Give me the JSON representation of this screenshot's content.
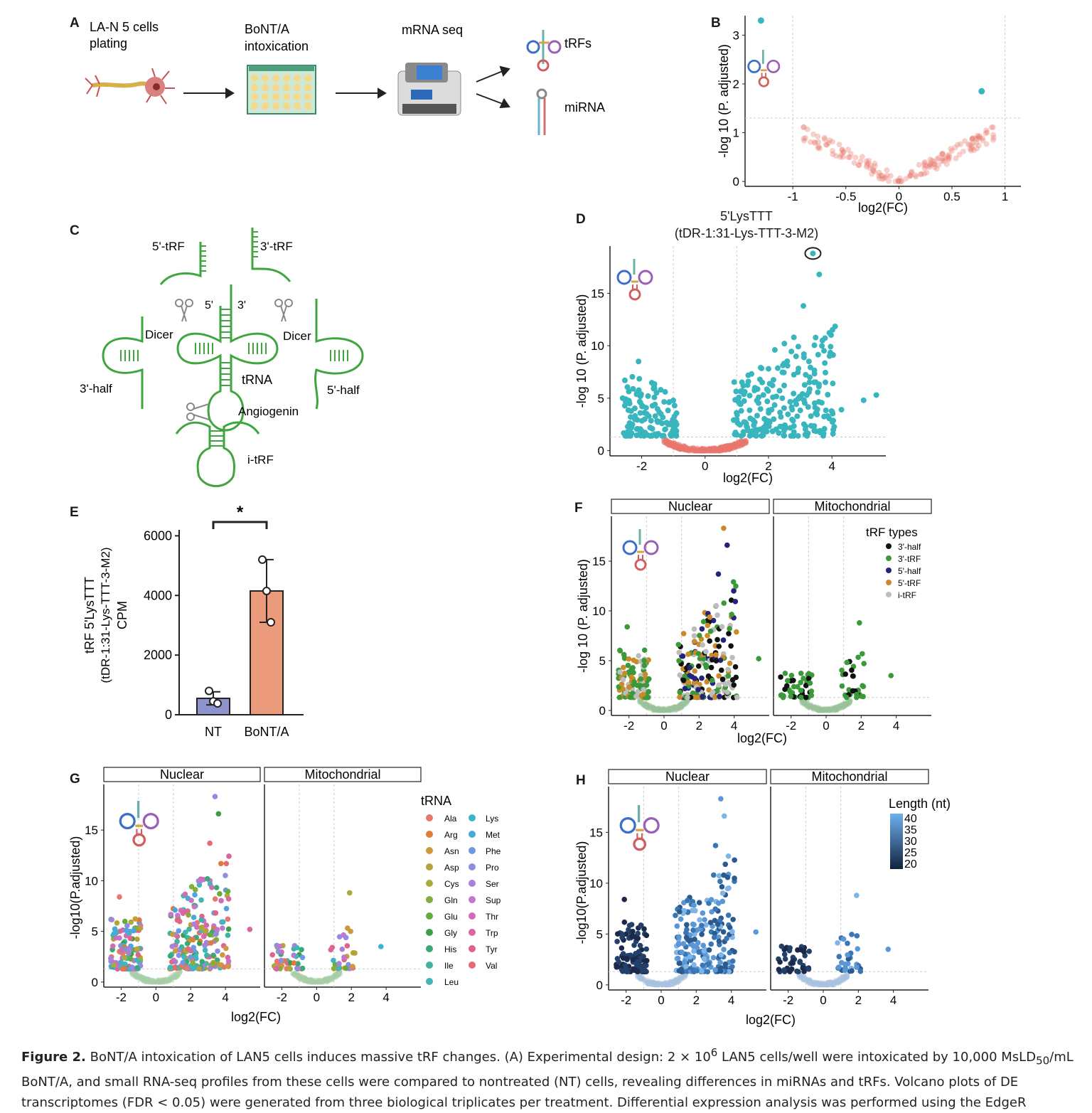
{
  "labels": {
    "A": "A",
    "B": "B",
    "C": "C",
    "D": "D",
    "E": "E",
    "F": "F",
    "G": "G",
    "H": "H"
  },
  "panelA": {
    "step1": [
      "LA-N 5 cells",
      "plating"
    ],
    "step2": [
      "BoNT/A",
      "intoxication"
    ],
    "step3": "mRNA seq",
    "out1": "tRFs",
    "out2": "miRNA"
  },
  "panelC": {
    "trf5": "5'-tRF",
    "trf3": "3'-tRF",
    "p5": "5'",
    "p3": "3'",
    "dicer": "Dicer",
    "half3": "3'-half",
    "half5": "5'-half",
    "trna": "tRNA",
    "angiogenin": "Angiogenin",
    "itrf": "i-tRF"
  },
  "panelD": {
    "title1": "5'LysTTT",
    "title2": "(tDR-1:31-Lys-TTT-3-M2)"
  },
  "panelE": {
    "ylabel1": "tRF 5'LysTTT",
    "ylabel2": "(tDR-1:31-Lys-TTT-3-M2)",
    "ylabel3": "CPM",
    "sig": "*"
  },
  "facets": {
    "nuclear": "Nuclear",
    "mito": "Mitochondrial"
  },
  "legendF": {
    "title": "tRF types",
    "items": [
      "3'-half",
      "3'-tRF",
      "5'-half",
      "5'-tRF",
      "i-tRF"
    ]
  },
  "legendG": {
    "title": "tRNA",
    "col1": [
      "Ala",
      "Arg",
      "Asn",
      "Asp",
      "Cys",
      "Gln",
      "Glu",
      "Gly",
      "His",
      "Ile",
      "Leu"
    ],
    "col2": [
      "Lys",
      "Met",
      "Phe",
      "Pro",
      "Ser",
      "Sup",
      "Thr",
      "Trp",
      "Tyr",
      "Val"
    ]
  },
  "legendH": {
    "title": "Length (nt)",
    "ticks": [
      "40",
      "35",
      "30",
      "25",
      "20"
    ]
  },
  "axes": {
    "xlab": "log2(FC)",
    "ylab_pa": "-log 10 (P. adjusted)",
    "ylab_pa2": "-log10(P.adjusted)"
  },
  "caption": {
    "line1_bold": "Figure 2.",
    "line1": " BoNT/A intoxication of LAN5 cells induces massive tRF changes. (A) Experimental design: 2 × 10",
    "sup6": "6",
    "line1b": " LAN5 cells/well were intoxicated by 10,000 MsLD",
    "sub50": "50",
    "line1c": "/mL",
    "line2": "BoNT/A, and small RNA-seq profiles from these cells were compared to nontreated (NT) cells, revealing differences in miRNAs and tRFs. Volcano plots of DE",
    "line3": "transcriptomes (FDR < 0.05) were generated from three biological triplicates per treatment. Differential expression analysis was performed using the EdgeR"
  },
  "colors": {
    "teal": "#39b5bd",
    "salmon": "#e8776e",
    "green": "#3a9a3a",
    "navy": "#23237a",
    "orange": "#c98b2a",
    "gray": "#bdbdbd",
    "bar_nt": "#8f93cc",
    "bar_bont": "#ec9a7c"
  },
  "chart_data": [
    {
      "id": "B",
      "type": "scatter",
      "xlabel": "log2(FC)",
      "ylabel": "-log 10 (P. adjusted)",
      "xlim": [
        -1.45,
        1.15
      ],
      "ylim": [
        -0.1,
        3.4
      ],
      "xticks": [
        -1.0,
        -0.5,
        0.0,
        0.5,
        1.0
      ],
      "yticks": [
        0,
        1,
        2,
        3
      ],
      "threshold_y": 1.3,
      "vlines": [
        -1.0,
        1.0
      ],
      "points": [
        [
          -1.3,
          3.3
        ],
        [
          0.78,
          1.85
        ]
      ]
    },
    {
      "id": "D",
      "type": "scatter",
      "title": "5'LysTTT (tDR-1:31-Lys-TTT-3-M2)",
      "xlabel": "log2(FC)",
      "ylabel": "-log 10 (P. adjusted)",
      "xlim": [
        -3,
        5.7
      ],
      "ylim": [
        -0.5,
        19.5
      ],
      "xticks": [
        -2,
        0,
        2,
        4
      ],
      "yticks": [
        0,
        5,
        10,
        15
      ],
      "threshold_y": 1.3,
      "vlines": [
        -1,
        1
      ],
      "highlight": [
        3.4,
        18.8
      ],
      "points": [
        [
          3.4,
          18.8
        ],
        [
          3.6,
          16.8
        ],
        [
          3.1,
          13.8
        ],
        [
          2.8,
          10.8
        ],
        [
          3.7,
          10.5
        ],
        [
          2.5,
          10.2
        ],
        [
          2.2,
          9.6
        ],
        [
          -2.1,
          8.5
        ],
        [
          5.4,
          5.3
        ],
        [
          5.0,
          4.8
        ],
        [
          4.3,
          3.9
        ],
        [
          -2.6,
          5.0
        ],
        [
          -1.8,
          5.2
        ],
        [
          -1.4,
          5.8
        ],
        [
          2.0,
          7.8
        ],
        [
          2.6,
          8.1
        ],
        [
          1.8,
          6.5
        ],
        [
          3.3,
          7.0
        ]
      ]
    },
    {
      "id": "E",
      "type": "bar",
      "categories": [
        "NT",
        "BoNT/A"
      ],
      "values": [
        550,
        4150
      ],
      "errors": [
        220,
        1050
      ],
      "points": [
        [
          800,
          450,
          380
        ],
        [
          5200,
          4150,
          3100
        ]
      ],
      "ylim": [
        0,
        6200
      ],
      "yticks": [
        0,
        2000,
        4000,
        6000
      ]
    }
  ]
}
